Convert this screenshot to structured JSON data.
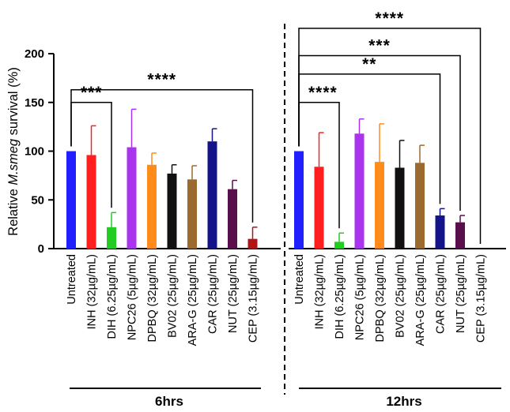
{
  "chart_data": {
    "type": "bar",
    "ylabel_prefix": "Relative ",
    "ylabel_italic": "M.smeg",
    "ylabel_suffix": " survival (%)",
    "ylim": [
      0,
      200
    ],
    "yticks": [
      "0",
      "50",
      "100",
      "150",
      "200"
    ],
    "categories": [
      "Untreated",
      "INH (32µg/mL)",
      "DIH (6.25µg/mL)",
      "NPC26 (5µg/mL)",
      "DPBQ (32µg/mL)",
      "BV02 (25µg/mL)",
      "ARA-G (25µg/mL)",
      "CAR (25µg/mL)",
      "NUT (25µg/mL)",
      "CEP (3.15µg/mL)"
    ],
    "colors": [
      "#1f1fff",
      "#ff1f1f",
      "#22cc22",
      "#aa33ee",
      "#ff8c1a",
      "#111111",
      "#9b6a2f",
      "#14148a",
      "#5a0f4d",
      "#b01414"
    ],
    "groups": [
      {
        "label": "6hrs",
        "values": [
          100,
          96,
          22,
          104,
          86,
          77,
          71,
          110,
          61,
          10
        ],
        "errors": [
          0,
          30,
          15,
          39,
          12,
          9,
          14,
          13,
          9,
          12
        ],
        "annotations": [
          {
            "text": "***",
            "from": 0,
            "to": 2,
            "level": 150
          },
          {
            "text": "****",
            "from": 0,
            "to": 9,
            "level": 163
          }
        ]
      },
      {
        "label": "12hrs",
        "values": [
          100,
          84,
          7,
          118,
          89,
          83,
          88,
          34,
          27,
          0
        ],
        "errors": [
          0,
          35,
          9,
          15,
          39,
          28,
          18,
          7,
          7,
          0
        ],
        "annotations": [
          {
            "text": "****",
            "from": 0,
            "to": 2,
            "level": 150
          },
          {
            "text": "**",
            "from": 0,
            "to": 7,
            "level": 179
          },
          {
            "text": "***",
            "from": 0,
            "to": 8,
            "level": 198
          },
          {
            "text": "****",
            "from": 0,
            "to": 9,
            "level": 226
          }
        ]
      }
    ]
  }
}
